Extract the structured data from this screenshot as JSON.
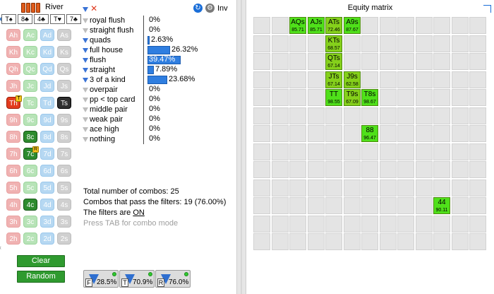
{
  "street": "River",
  "board": [
    "T♠",
    "8♣",
    "4♣",
    "T♥",
    "7♣"
  ],
  "card_rows": [
    {
      "rank": "A",
      "cards": [
        "Ah",
        "Ac",
        "Ad",
        "As"
      ]
    },
    {
      "rank": "K",
      "cards": [
        "Kh",
        "Kc",
        "Kd",
        "Ks"
      ]
    },
    {
      "rank": "Q",
      "cards": [
        "Qh",
        "Qc",
        "Qd",
        "Qs"
      ]
    },
    {
      "rank": "J",
      "cards": [
        "Jh",
        "Jc",
        "Jd",
        "Js"
      ]
    },
    {
      "rank": "T",
      "cards": [
        "Th",
        "Tc",
        "Td",
        "Ts"
      ]
    },
    {
      "rank": "9",
      "cards": [
        "9h",
        "9c",
        "9d",
        "9s"
      ]
    },
    {
      "rank": "8",
      "cards": [
        "8h",
        "8c",
        "8d",
        "8s"
      ]
    },
    {
      "rank": "7",
      "cards": [
        "7h",
        "7c",
        "7d",
        "7s"
      ]
    },
    {
      "rank": "6",
      "cards": [
        "6h",
        "6c",
        "6d",
        "6s"
      ]
    },
    {
      "rank": "5",
      "cards": [
        "5h",
        "5c",
        "5d",
        "5s"
      ]
    },
    {
      "rank": "4",
      "cards": [
        "4h",
        "4c",
        "4d",
        "4s"
      ]
    },
    {
      "rank": "3",
      "cards": [
        "3h",
        "3c",
        "3d",
        "3s"
      ]
    },
    {
      "rank": "2",
      "cards": [
        "2h",
        "2c",
        "2d",
        "2s"
      ]
    }
  ],
  "board_card_tags": {
    "Th": "T",
    "7c": "R"
  },
  "buttons": {
    "clear": "Clear",
    "random": "Random"
  },
  "inv_label": "Inv",
  "filters": [
    {
      "name": "royal flush",
      "value": "0%",
      "fraction": 0
    },
    {
      "name": "straight flush",
      "value": "0%",
      "fraction": 0
    },
    {
      "name": "quads",
      "value": "2.63%",
      "fraction": 0.0263
    },
    {
      "name": "full house",
      "value": "26.32%",
      "fraction": 0.2632
    },
    {
      "name": "flush",
      "value": "39.47%",
      "fraction": 0.3947
    },
    {
      "name": "straight",
      "value": "7.89%",
      "fraction": 0.0789
    },
    {
      "name": "3 of a kind",
      "value": "23.68%",
      "fraction": 0.2368
    },
    {
      "name": "overpair",
      "value": "0%",
      "fraction": 0
    },
    {
      "name": "pp < top card",
      "value": "0%",
      "fraction": 0
    },
    {
      "name": "middle pair",
      "value": "0%",
      "fraction": 0
    },
    {
      "name": "weak pair",
      "value": "0%",
      "fraction": 0
    },
    {
      "name": "ace high",
      "value": "0%",
      "fraction": 0
    },
    {
      "name": "nothing",
      "value": "0%",
      "fraction": 0
    }
  ],
  "stats": {
    "total": "Total number of combos: 25",
    "pass": "Combos that pass the filters: 19 (76.00%)",
    "filters_on_prefix": "The filters are ",
    "filters_on": "ON",
    "hint": "Press TAB for combo mode"
  },
  "street_filters": [
    {
      "letter": "F",
      "value": "28.5%"
    },
    {
      "letter": "T",
      "value": "70.9%"
    },
    {
      "letter": "R",
      "value": "76.0%"
    }
  ],
  "matrix": {
    "title": "Equity matrix",
    "size": 13,
    "active": [
      {
        "row": 0,
        "col": 2,
        "hand": "AQs",
        "equity": "85.71",
        "bright": true
      },
      {
        "row": 0,
        "col": 3,
        "hand": "AJs",
        "equity": "85.71",
        "bright": true
      },
      {
        "row": 0,
        "col": 4,
        "hand": "ATs",
        "equity": "72.46",
        "bright": false
      },
      {
        "row": 0,
        "col": 5,
        "hand": "A9s",
        "equity": "87.67",
        "bright": true
      },
      {
        "row": 1,
        "col": 4,
        "hand": "KTs",
        "equity": "68.57",
        "bright": false
      },
      {
        "row": 2,
        "col": 4,
        "hand": "QTs",
        "equity": "67.14",
        "bright": false
      },
      {
        "row": 3,
        "col": 4,
        "hand": "JTs",
        "equity": "67.14",
        "bright": false
      },
      {
        "row": 3,
        "col": 5,
        "hand": "J9s",
        "equity": "62.58",
        "bright": false
      },
      {
        "row": 4,
        "col": 4,
        "hand": "TT",
        "equity": "98.55",
        "bright": true
      },
      {
        "row": 4,
        "col": 5,
        "hand": "T9s",
        "equity": "67.09",
        "bright": false
      },
      {
        "row": 4,
        "col": 6,
        "hand": "T8s",
        "equity": "98.67",
        "bright": true
      },
      {
        "row": 6,
        "col": 6,
        "hand": "88",
        "equity": "96.47",
        "bright": true
      },
      {
        "row": 10,
        "col": 10,
        "hand": "44",
        "equity": "90.11",
        "bright": true
      }
    ]
  }
}
